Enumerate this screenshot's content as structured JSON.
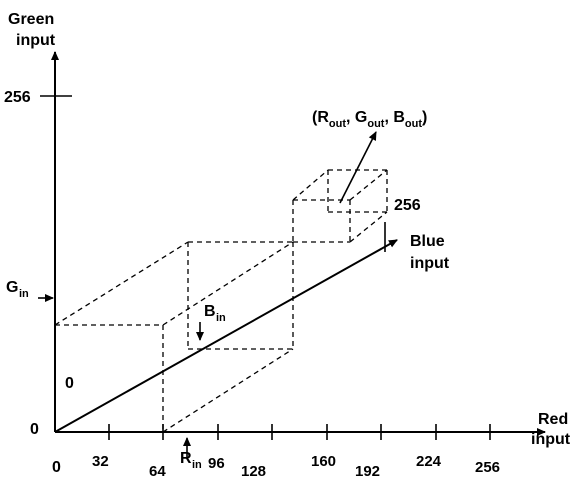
{
  "axes": {
    "green_label_line1": "Green",
    "green_label_line2": "input",
    "red_label_line1": "Red",
    "red_label_line2": "input",
    "blue_label_line1": "Blue",
    "blue_label_line2": "input",
    "green_tick_256": "256",
    "blue_tick_256": "256",
    "origin_left": "0",
    "origin_bottom": "0",
    "blue_origin": "0"
  },
  "red_ticks": [
    "32",
    "64",
    "96",
    "128",
    "160",
    "192",
    "224",
    "256"
  ],
  "markers": {
    "g_in_main": "G",
    "g_in_sub": "in",
    "r_in_main": "R",
    "r_in_sub": "in",
    "b_in_main": "B",
    "b_in_sub": "in"
  },
  "output_label": {
    "open": "(R",
    "sub1": "out",
    "mid1": ", G",
    "sub2": "out",
    "mid2": ", B",
    "sub3": "out",
    "close": ")"
  }
}
